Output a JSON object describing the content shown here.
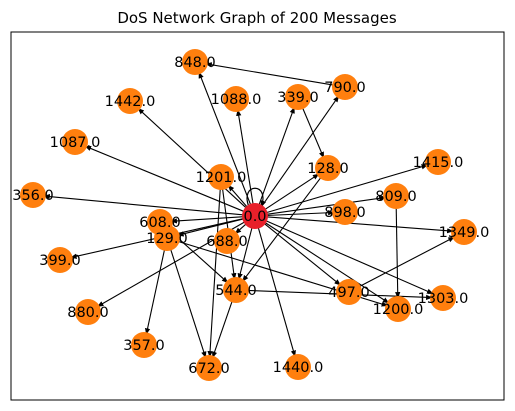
{
  "title": "DoS Network Graph of 200 Messages",
  "colors": {
    "node": "#ff7f0e",
    "hub_node": "#e8202a",
    "edge": "#000000",
    "background": "#ffffff",
    "frame": "#000000"
  },
  "graph": {
    "nodes": [
      {
        "id": "0.0",
        "label": "0.0",
        "role": "hub"
      },
      {
        "id": "848.0",
        "label": "848.0"
      },
      {
        "id": "790.0",
        "label": "790.0"
      },
      {
        "id": "339.0",
        "label": "339.0"
      },
      {
        "id": "1088.0",
        "label": "1088.0"
      },
      {
        "id": "1442.0",
        "label": "1442.0"
      },
      {
        "id": "1087.0",
        "label": "1087.0"
      },
      {
        "id": "128.0",
        "label": "128.0"
      },
      {
        "id": "1201.0",
        "label": "1201.0"
      },
      {
        "id": "1415.0",
        "label": "1415.0"
      },
      {
        "id": "356.0",
        "label": "356.0"
      },
      {
        "id": "809.0",
        "label": "809.0"
      },
      {
        "id": "898.0",
        "label": "898.0"
      },
      {
        "id": "608.0",
        "label": "608.0"
      },
      {
        "id": "129.0",
        "label": "129.0"
      },
      {
        "id": "688.0",
        "label": "688.0"
      },
      {
        "id": "1349.0",
        "label": "1349.0"
      },
      {
        "id": "399.0",
        "label": "399.0"
      },
      {
        "id": "544.0",
        "label": "544.0"
      },
      {
        "id": "497.0",
        "label": "497.0"
      },
      {
        "id": "880.0",
        "label": "880.0"
      },
      {
        "id": "1303.0",
        "label": "1303.0"
      },
      {
        "id": "1200.0",
        "label": "1200.0"
      },
      {
        "id": "357.0",
        "label": "357.0"
      },
      {
        "id": "672.0",
        "label": "672.0"
      },
      {
        "id": "1440.0",
        "label": "1440.0"
      }
    ],
    "edges": [
      [
        "0.0",
        "848.0"
      ],
      [
        "0.0",
        "1442.0"
      ],
      [
        "0.0",
        "1088.0"
      ],
      [
        "0.0",
        "339.0"
      ],
      [
        "0.0",
        "790.0"
      ],
      [
        "0.0",
        "1087.0"
      ],
      [
        "0.0",
        "356.0"
      ],
      [
        "0.0",
        "399.0"
      ],
      [
        "0.0",
        "1415.0"
      ],
      [
        "0.0",
        "1349.0"
      ],
      [
        "0.0",
        "1303.0"
      ],
      [
        "0.0",
        "1440.0"
      ],
      [
        "0.0",
        "880.0"
      ],
      [
        "0.0",
        "544.0"
      ],
      [
        "0.0",
        "1200.0"
      ],
      [
        "0.0",
        "1201.0"
      ],
      [
        "0.0",
        "128.0"
      ],
      [
        "0.0",
        "898.0"
      ],
      [
        "0.0",
        "608.0"
      ],
      [
        "0.0",
        "129.0"
      ],
      [
        "0.0",
        "688.0"
      ],
      [
        "0.0",
        "497.0"
      ],
      [
        "0.0",
        "809.0"
      ],
      [
        "790.0",
        "848.0"
      ],
      [
        "339.0",
        "128.0"
      ],
      [
        "128.0",
        "544.0"
      ],
      [
        "809.0",
        "1200.0"
      ],
      [
        "497.0",
        "1349.0"
      ],
      [
        "129.0",
        "357.0"
      ],
      [
        "129.0",
        "672.0"
      ],
      [
        "129.0",
        "1200.0"
      ],
      [
        "544.0",
        "672.0"
      ],
      [
        "544.0",
        "1303.0"
      ],
      [
        "1201.0",
        "672.0"
      ],
      [
        "1201.0",
        "544.0"
      ],
      [
        "608.0",
        "544.0"
      ],
      [
        "0.0",
        "0.0"
      ]
    ]
  }
}
